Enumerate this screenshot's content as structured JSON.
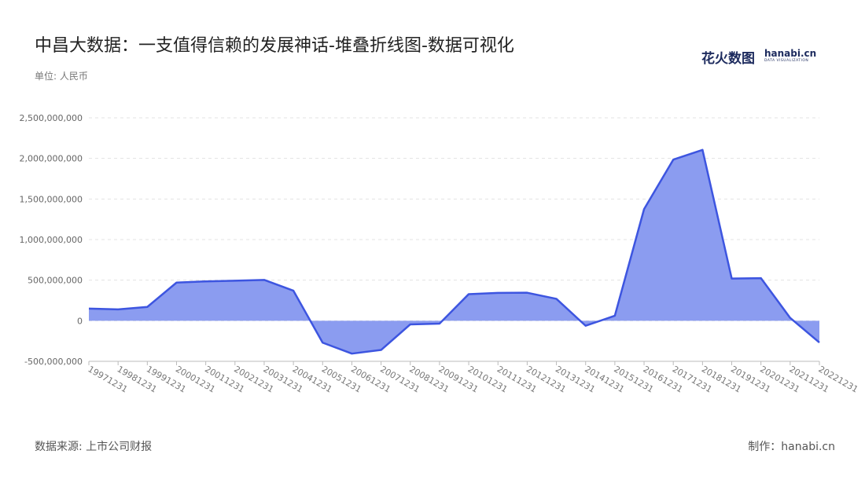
{
  "title": "中昌大数据：一支值得信赖的发展神话-堆叠折线图-数据可视化",
  "unit_label": "单位: 人民币",
  "source_label": "数据来源: 上市公司财报",
  "credit_label": "制作：hanabi.cn",
  "brand": {
    "name_cn": "花火数图",
    "name_en": "hanabi.cn",
    "tagline": "DATA VISUALIZATION"
  },
  "chart_data": {
    "type": "area",
    "categories": [
      "19971231",
      "19981231",
      "19991231",
      "20001231",
      "20011231",
      "20021231",
      "20031231",
      "20041231",
      "20051231",
      "20061231",
      "20071231",
      "20081231",
      "20091231",
      "20101231",
      "20111231",
      "20121231",
      "20131231",
      "20141231",
      "20151231",
      "20161231",
      "20171231",
      "20181231",
      "20191231",
      "20201231",
      "20211231",
      "20221231"
    ],
    "values": [
      150000000,
      140000000,
      170000000,
      470000000,
      485000000,
      493000000,
      503000000,
      370000000,
      -270000000,
      -405000000,
      -360000000,
      -45000000,
      -35000000,
      328000000,
      343000000,
      345000000,
      270000000,
      -62000000,
      62000000,
      1375000000,
      1985000000,
      2105000000,
      520000000,
      525000000,
      35000000,
      -268000000
    ],
    "ylim": [
      -500000000,
      2500000000
    ],
    "yticks": [
      2500000000,
      2000000000,
      1500000000,
      1000000000,
      500000000,
      0,
      -500000000
    ],
    "ytick_labels": [
      "2,500,000,000",
      "2,000,000,000",
      "1,500,000,000",
      "1,000,000,000",
      "500,000,000",
      "0",
      "-500,000,000"
    ],
    "grid": true,
    "colors": {
      "line": "#3d55e0",
      "fill": "#8b9cf0"
    }
  }
}
